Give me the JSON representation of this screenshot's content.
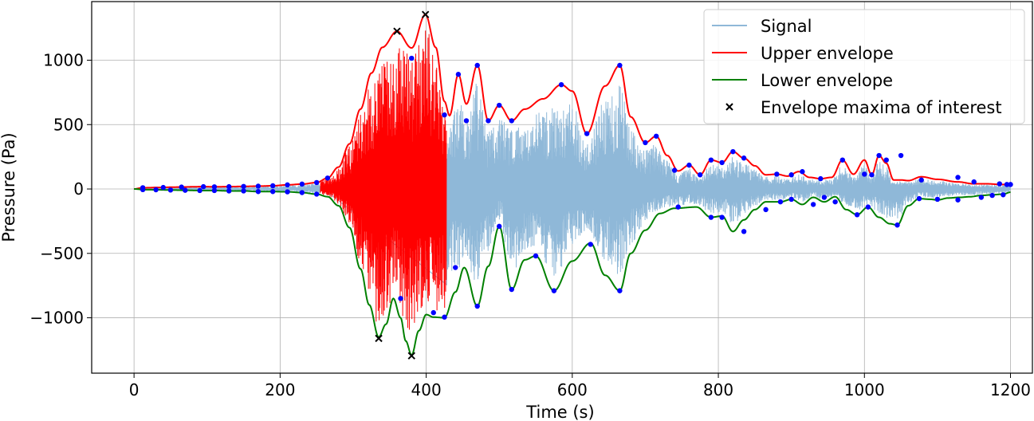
{
  "chart_data": {
    "type": "line",
    "title": "",
    "xlabel": "Time (s)",
    "ylabel": "Pressure (Pa)",
    "xlim": [
      -58,
      1230
    ],
    "ylim": [
      -1430,
      1455
    ],
    "x_ticks": [
      0,
      200,
      400,
      600,
      800,
      1000,
      1200
    ],
    "y_ticks": [
      -1000,
      -500,
      0,
      500,
      1000
    ],
    "x_tick_labels": [
      "0",
      "200",
      "400",
      "600",
      "800",
      "1000",
      "1200"
    ],
    "y_tick_labels": [
      "−1000",
      "−500",
      "0",
      "500",
      "1000"
    ],
    "grid": true,
    "legend_position": "top-right",
    "colors": {
      "signal": "#8fb8d8",
      "signal_highlight": "#ff0000",
      "upper": "#ff0000",
      "lower": "#008000",
      "extrema_points": "#0000ff",
      "maxima_marker": "#000000"
    },
    "series": [
      {
        "name": "Signal",
        "kind": "line",
        "highlight_range": [
          255,
          428
        ],
        "amplitude_envelope": {
          "upper_ref": "Upper envelope",
          "lower_ref": "Lower envelope",
          "fill_fraction_highlight": 0.95,
          "fill_fraction_normal": 0.86
        }
      },
      {
        "name": "Upper envelope",
        "kind": "line",
        "x": [
          0,
          10,
          20,
          30,
          40,
          50,
          65,
          80,
          95,
          110,
          130,
          150,
          170,
          190,
          210,
          230,
          250,
          265,
          280,
          295,
          310,
          325,
          340,
          360,
          380,
          399,
          413,
          425,
          432,
          444,
          455,
          470,
          485,
          500,
          517,
          535,
          560,
          585,
          600,
          620,
          645,
          665,
          680,
          700,
          715,
          730,
          745,
          760,
          775,
          790,
          805,
          820,
          835,
          850,
          865,
          880,
          895,
          910,
          925,
          940,
          955,
          970,
          985,
          1000,
          1010,
          1020,
          1030,
          1040,
          1050,
          1060,
          1078,
          1100,
          1128,
          1150,
          1170,
          1185,
          1200
        ],
        "values": [
          0,
          8,
          10,
          12,
          12,
          14,
          15,
          17,
          18,
          17,
          18,
          20,
          22,
          25,
          32,
          38,
          50,
          85,
          170,
          350,
          620,
          900,
          1100,
          1225,
          1095,
          1355,
          1100,
          680,
          570,
          890,
          660,
          960,
          530,
          650,
          530,
          620,
          700,
          810,
          760,
          430,
          800,
          960,
          560,
          360,
          410,
          260,
          140,
          185,
          110,
          225,
          205,
          290,
          240,
          180,
          110,
          115,
          100,
          135,
          90,
          80,
          90,
          225,
          115,
          225,
          110,
          260,
          200,
          70,
          70,
          65,
          95,
          75,
          55,
          40,
          40,
          35,
          35
        ]
      },
      {
        "name": "Lower envelope",
        "kind": "line",
        "x": [
          0,
          15,
          30,
          50,
          70,
          90,
          110,
          130,
          150,
          170,
          190,
          210,
          230,
          250,
          265,
          280,
          295,
          310,
          322,
          335,
          345,
          355,
          365,
          372,
          380,
          390,
          400,
          410,
          425,
          440,
          452,
          470,
          485,
          500,
          517,
          535,
          550,
          575,
          600,
          625,
          645,
          665,
          680,
          700,
          720,
          740,
          770,
          790,
          805,
          820,
          835,
          850,
          865,
          885,
          900,
          915,
          930,
          945,
          960,
          975,
          990,
          1005,
          1020,
          1035,
          1045,
          1060,
          1075,
          1090,
          1100,
          1115,
          1130,
          1145,
          1160,
          1175,
          1190,
          1200
        ],
        "values": [
          0,
          -5,
          -6,
          -8,
          -10,
          -12,
          -12,
          -15,
          -15,
          -20,
          -20,
          -22,
          -28,
          -40,
          -60,
          -130,
          -300,
          -620,
          -900,
          -1150,
          -1050,
          -850,
          -1000,
          -1180,
          -1290,
          -1100,
          -975,
          -995,
          -1000,
          -800,
          -610,
          -910,
          -600,
          -290,
          -780,
          -550,
          -520,
          -790,
          -560,
          -420,
          -670,
          -790,
          -500,
          -320,
          -190,
          -150,
          -140,
          -220,
          -210,
          -330,
          -240,
          -160,
          -100,
          -100,
          -80,
          -120,
          -65,
          -100,
          -60,
          -160,
          -200,
          -140,
          -220,
          -270,
          -280,
          -130,
          -75,
          -80,
          -85,
          -70,
          -65,
          -60,
          -50,
          -45,
          -40,
          -25
        ]
      },
      {
        "name": "Envelope maxima of interest",
        "kind": "scatter",
        "x": [
          360,
          399,
          335,
          380
        ],
        "values": [
          1225,
          1355,
          -1160,
          -1295
        ]
      }
    ],
    "extrema_points": {
      "upper": {
        "x": [
          12,
          40,
          65,
          95,
          110,
          130,
          150,
          170,
          190,
          210,
          230,
          250,
          265,
          380,
          425,
          444,
          455,
          470,
          485,
          500,
          517,
          585,
          620,
          665,
          700,
          715,
          740,
          760,
          775,
          790,
          805,
          820,
          835,
          880,
          900,
          915,
          940,
          970,
          1000,
          1010,
          1020,
          1030,
          1050,
          1078,
          1128,
          1150,
          1185,
          1195,
          1200
        ],
        "values": [
          10,
          12,
          15,
          18,
          17,
          18,
          20,
          22,
          25,
          32,
          38,
          50,
          85,
          1015,
          575,
          890,
          530,
          960,
          530,
          650,
          530,
          810,
          430,
          960,
          360,
          410,
          145,
          185,
          110,
          225,
          205,
          290,
          240,
          115,
          110,
          135,
          80,
          225,
          115,
          110,
          260,
          225,
          260,
          70,
          90,
          55,
          40,
          35,
          35
        ]
      },
      "lower": {
        "x": [
          12,
          30,
          50,
          70,
          90,
          110,
          130,
          150,
          170,
          190,
          210,
          230,
          250,
          365,
          410,
          425,
          440,
          470,
          500,
          517,
          550,
          575,
          625,
          665,
          745,
          790,
          805,
          835,
          865,
          885,
          900,
          930,
          945,
          960,
          990,
          1005,
          1045,
          1075,
          1100,
          1128,
          1160,
          1175,
          1190
        ],
        "values": [
          -5,
          -6,
          -8,
          -10,
          -12,
          -12,
          -15,
          -15,
          -20,
          -20,
          -22,
          -28,
          -40,
          -850,
          -960,
          -995,
          -610,
          -910,
          -290,
          -780,
          -520,
          -790,
          -430,
          -790,
          -140,
          -220,
          -220,
          -330,
          -160,
          -100,
          -80,
          -120,
          -65,
          -100,
          -200,
          -140,
          -280,
          -75,
          -80,
          -85,
          -65,
          -50,
          -45
        ]
      }
    }
  }
}
